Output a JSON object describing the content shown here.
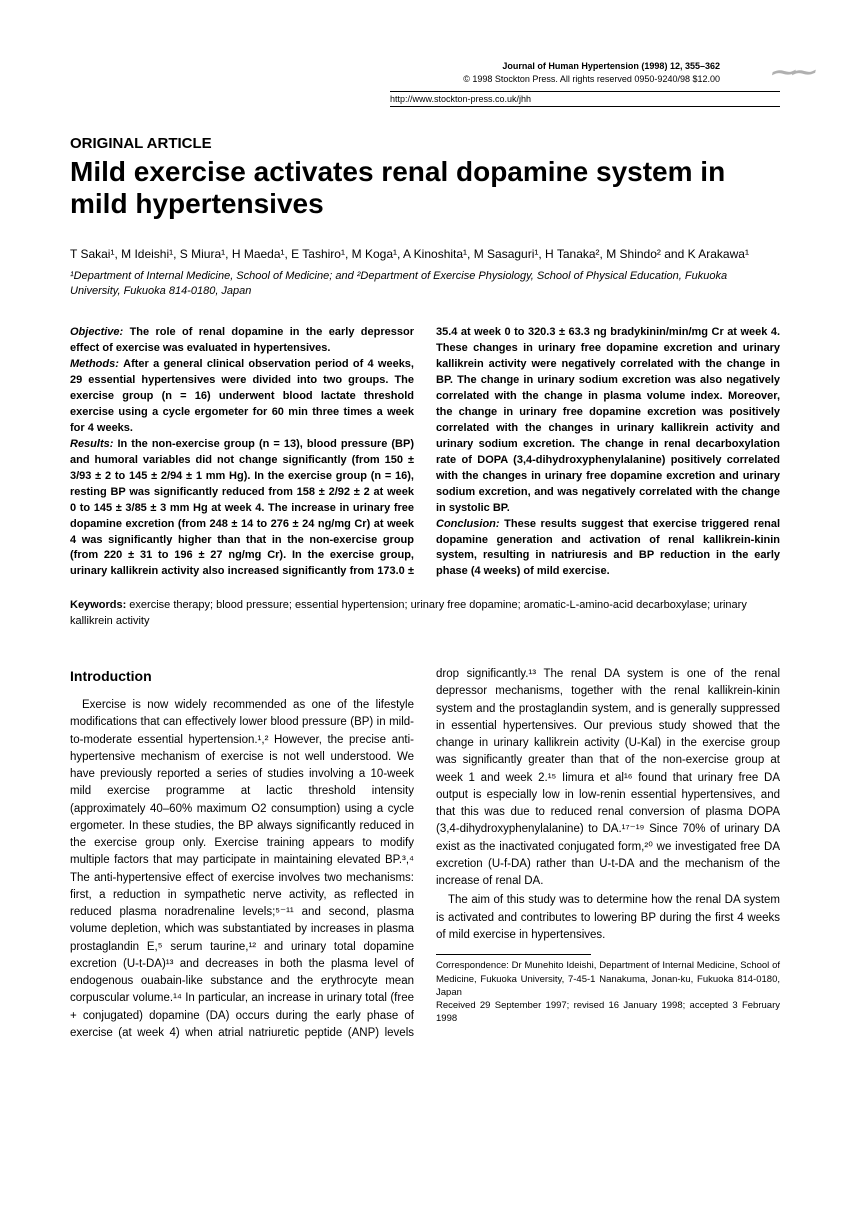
{
  "header": {
    "journal_line": "Journal of Human Hypertension (1998) 12, 355–362",
    "copyright_line": "© 1998 Stockton Press. All rights reserved 0950-9240/98 $12.00",
    "url": "http://www.stockton-press.co.uk/jhh"
  },
  "section_label": "ORIGINAL ARTICLE",
  "title": "Mild exercise activates renal dopamine system in mild hypertensives",
  "authors": "T Sakai¹, M Ideishi¹, S Miura¹, H Maeda¹, E Tashiro¹, M Koga¹, A Kinoshita¹, M Sasaguri¹, H Tanaka², M Shindo² and K Arakawa¹",
  "affiliations": "¹Department of Internal Medicine, School of Medicine; and ²Department of Exercise Physiology, School of Physical Education, Fukuoka University, Fukuoka 814-0180, Japan",
  "abstract": {
    "objective": "The role of renal dopamine in the early depressor effect of exercise was evaluated in hypertensives.",
    "methods": "After a general clinical observation period of 4 weeks, 29 essential hypertensives were divided into two groups. The exercise group (n = 16) underwent blood lactate threshold exercise using a cycle ergometer for 60 min three times a week for 4 weeks.",
    "results": "In the non-exercise group (n = 13), blood pressure (BP) and humoral variables did not change significantly (from 150 ± 3/93 ± 2 to 145 ± 2/94 ± 1 mm Hg). In the exercise group (n = 16), resting BP was significantly reduced from 158 ± 2/92 ± 2 at week 0 to 145 ± 3/85 ± 3 mm Hg at week 4. The increase in urinary free dopamine excretion (from 248 ± 14 to 276 ± 24 ng/mg Cr) at week 4 was significantly higher than that in the non-exercise group (from 220 ± 31 to 196 ± 27 ng/mg Cr). In the exercise group, urinary kallikrein activity also increased significantly from 173.0 ± 35.4 at week 0 to 320.3 ± 63.3 ng bradykinin/min/mg Cr at week 4. These changes in urinary free dopamine excretion and urinary kallikrein activity were negatively correlated with the change in BP. The change in urinary sodium excretion was also negatively correlated with the change in plasma volume index. Moreover, the change in urinary free dopamine excretion was positively correlated with the changes in urinary kallikrein activity and urinary sodium excretion. The change in renal decarboxylation rate of DOPA (3,4-dihydroxyphenylalanine) positively correlated with the changes in urinary free dopamine excretion and urinary sodium excretion, and was negatively correlated with the change in systolic BP.",
    "conclusion": "These results suggest that exercise triggered renal dopamine generation and activation of renal kallikrein-kinin system, resulting in natriuresis and BP reduction in the early phase (4 weeks) of mild exercise."
  },
  "keywords": "exercise therapy; blood pressure; essential hypertension; urinary free dopamine; aromatic-L-amino-acid decarboxylase; urinary kallikrein activity",
  "intro_heading": "Introduction",
  "body": {
    "p1": "Exercise is now widely recommended as one of the lifestyle modifications that can effectively lower blood pressure (BP) in mild-to-moderate essential hypertension.¹,² However, the precise anti-hypertensive mechanism of exercise is not well understood. We have previously reported a series of studies involving a 10-week mild exercise programme at lactic threshold intensity (approximately 40–60% maximum O2 consumption) using a cycle ergometer. In these studies, the BP always significantly reduced in the exercise group only. Exercise training appears to modify multiple factors that may participate in maintaining elevated BP.³,⁴ The anti-hypertensive effect of exercise involves two mechanisms: first, a reduction in sympathetic nerve activity, as reflected in reduced plasma noradrenaline levels;⁵⁻¹¹ and second, plasma volume depletion, which was substantiated by increases in plasma prostaglandin E,⁵ serum taurine,¹² and urinary total dopamine excretion (U-t-DA)¹³ and decreases in both the plasma level of endogenous ouabain-like substance and the erythrocyte mean corpuscular volume.¹⁴ In particular, an increase in urinary total (free + conjugated) dopamine (DA) occurs during the early phase of exercise (at week 4) when atrial natriuretic peptide (ANP) levels drop significantly.¹³ The renal DA system is one of the renal depressor mechanisms, together with the renal kallikrein-kinin system and the prostaglandin system, and is generally suppressed in essential hypertensives. Our previous study showed that the change in urinary kallikrein activity (U-Kal) in the exercise group was significantly greater than that of the non-exercise group at week 1 and week 2.¹⁵ Iimura et al¹⁶ found that urinary free DA output is especially low in low-renin essential hypertensives, and that this was due to reduced renal conversion of plasma DOPA (3,4-dihydroxyphenylalanine) to DA.¹⁷⁻¹⁹ Since 70% of urinary DA exist as the inactivated conjugated form,²⁰ we investigated free DA excretion (U-f-DA) rather than U-t-DA and the mechanism of the increase of renal DA.",
    "p2": "The aim of this study was to determine how the renal DA system is activated and contributes to lowering BP during the first 4 weeks of mild exercise in hypertensives."
  },
  "footnote": {
    "correspondence": "Correspondence: Dr Munehito Ideishi, Department of Internal Medicine, School of Medicine, Fukuoka University, 7-45-1 Nanakuma, Jonan-ku, Fukuoka 814-0180, Japan",
    "dates": "Received 29 September 1997; revised 16 January 1998; accepted 3 February 1998"
  }
}
